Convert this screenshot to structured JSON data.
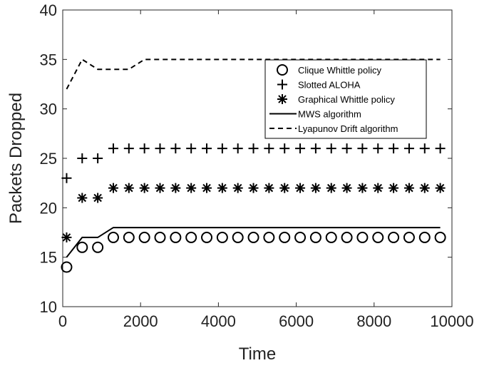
{
  "chart_data": {
    "type": "line",
    "title": "",
    "xlabel": "Time",
    "ylabel": "Packets Dropped",
    "xlim": [
      0,
      10000
    ],
    "ylim": [
      10,
      40
    ],
    "xticks": [
      0,
      2000,
      4000,
      6000,
      8000,
      10000
    ],
    "yticks": [
      10,
      15,
      20,
      25,
      30,
      35,
      40
    ],
    "grid": false,
    "legend_position": "top-right",
    "series": [
      {
        "name": "Clique Whittle policy",
        "marker": "circle",
        "line": "none",
        "x": [
          100,
          500,
          900,
          1300,
          1700,
          2100,
          2500,
          2900,
          3300,
          3700,
          4100,
          4500,
          4900,
          5300,
          5700,
          6100,
          6500,
          6900,
          7300,
          7700,
          8100,
          8500,
          8900,
          9300,
          9700
        ],
        "y": [
          14,
          16,
          16,
          17,
          17,
          17,
          17,
          17,
          17,
          17,
          17,
          17,
          17,
          17,
          17,
          17,
          17,
          17,
          17,
          17,
          17,
          17,
          17,
          17,
          17
        ]
      },
      {
        "name": "Slotted ALOHA",
        "marker": "plus",
        "line": "none",
        "x": [
          100,
          500,
          900,
          1300,
          1700,
          2100,
          2500,
          2900,
          3300,
          3700,
          4100,
          4500,
          4900,
          5300,
          5700,
          6100,
          6500,
          6900,
          7300,
          7700,
          8100,
          8500,
          8900,
          9300,
          9700
        ],
        "y": [
          23,
          25,
          25,
          26,
          26,
          26,
          26,
          26,
          26,
          26,
          26,
          26,
          26,
          26,
          26,
          26,
          26,
          26,
          26,
          26,
          26,
          26,
          26,
          26,
          26
        ]
      },
      {
        "name": "Graphical Whittle policy",
        "marker": "asterisk",
        "line": "none",
        "x": [
          100,
          500,
          900,
          1300,
          1700,
          2100,
          2500,
          2900,
          3300,
          3700,
          4100,
          4500,
          4900,
          5300,
          5700,
          6100,
          6500,
          6900,
          7300,
          7700,
          8100,
          8500,
          8900,
          9300,
          9700
        ],
        "y": [
          17,
          21,
          21,
          22,
          22,
          22,
          22,
          22,
          22,
          22,
          22,
          22,
          22,
          22,
          22,
          22,
          22,
          22,
          22,
          22,
          22,
          22,
          22,
          22,
          22
        ]
      },
      {
        "name": "MWS algorithm",
        "marker": "none",
        "line": "solid",
        "x": [
          100,
          500,
          900,
          1300,
          9700
        ],
        "y": [
          15,
          17,
          17,
          18,
          18
        ]
      },
      {
        "name": "Lyapunov Drift algorithm",
        "marker": "none",
        "line": "dashed",
        "x": [
          100,
          500,
          900,
          1700,
          2100,
          9700
        ],
        "y": [
          32,
          35,
          34,
          34,
          35,
          35
        ]
      }
    ]
  }
}
